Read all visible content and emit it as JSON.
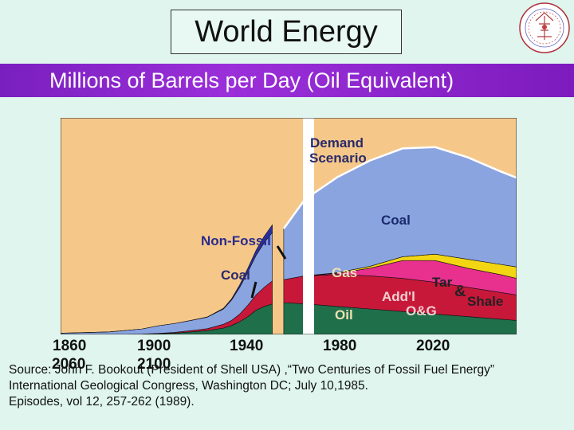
{
  "slide": {
    "title": "World Energy",
    "subtitle": "Millions of Barrels per Day (Oil Equivalent)",
    "source_line1": "Source: John F. Bookout (President of Shell USA) ,“Two Centuries of Fossil Fuel Energy”",
    "source_line2": "International Geological Congress, Washington DC;  July 10,1985.",
    "source_line3": "Episodes, vol 12, 257-262 (1989).",
    "logo_icon": "geological-congress-seal-icon"
  },
  "chart_data": {
    "type": "area",
    "x_tick_labels": [
      "1860",
      "1900",
      "1940",
      "1980",
      "2020",
      "2060",
      "2100"
    ],
    "annotations": {
      "demand": [
        "Demand",
        "Scenario"
      ],
      "coal_future": "Coal",
      "non_fossil": "Non-Fossil",
      "coal_past": "Coal",
      "gas": "Gas",
      "tar_shale": [
        "Tar",
        "&",
        "Shale"
      ],
      "addl_og": [
        "Add'l",
        "O&G"
      ],
      "oil": "Oil"
    },
    "colors": {
      "background": "#f5c88a",
      "oil": "#1f6f4a",
      "gas": "#c8183a",
      "coal": "#8aa4e0",
      "non_fossil": "#2a30a0",
      "addl": "#e8308e",
      "tar": "#f2d614",
      "demand_line": "#ffffff"
    },
    "historical": {
      "x": [
        1850,
        1880,
        1900,
        1910,
        1920,
        1930,
        1940,
        1950,
        1955,
        1960,
        1965,
        1970,
        1975,
        1980
      ],
      "oil": [
        0,
        0,
        0.2,
        0.5,
        1,
        2,
        3,
        5,
        7,
        10,
        14,
        19,
        22,
        24
      ],
      "gas": [
        0,
        0,
        0.1,
        0.3,
        0.6,
        1,
        1.5,
        3,
        4,
        6,
        9,
        12,
        15,
        18
      ],
      "coal": [
        1,
        2,
        4,
        6,
        7,
        8,
        9,
        12,
        16,
        21,
        26,
        31,
        35,
        38
      ],
      "non_fossil": [
        0,
        0,
        0,
        0,
        0,
        0,
        0.2,
        0.5,
        1,
        2,
        3,
        4,
        5,
        6
      ]
    },
    "scenario": {
      "x": [
        1987,
        2000,
        2020,
        2040,
        2060,
        2080,
        2100,
        2120,
        2130
      ],
      "oil": [
        25,
        24,
        22,
        20,
        18,
        16,
        14,
        12,
        11
      ],
      "gas": [
        18,
        22,
        25,
        26,
        26,
        25,
        23,
        21,
        20
      ],
      "addl_og": [
        0,
        0,
        1,
        6,
        14,
        17,
        15,
        14,
        13
      ],
      "tar_shale": [
        0,
        0,
        0.5,
        1.5,
        3,
        5,
        7,
        8,
        9
      ],
      "coal": [
        40,
        60,
        75,
        83,
        85,
        84,
        80,
        73,
        70
      ],
      "demand_total": [
        83,
        106,
        123.5,
        136.5,
        146,
        147,
        139,
        128,
        123
      ]
    },
    "ylim": [
      0,
      170
    ],
    "xlim": [
      1850,
      2130
    ],
    "grid": false
  }
}
